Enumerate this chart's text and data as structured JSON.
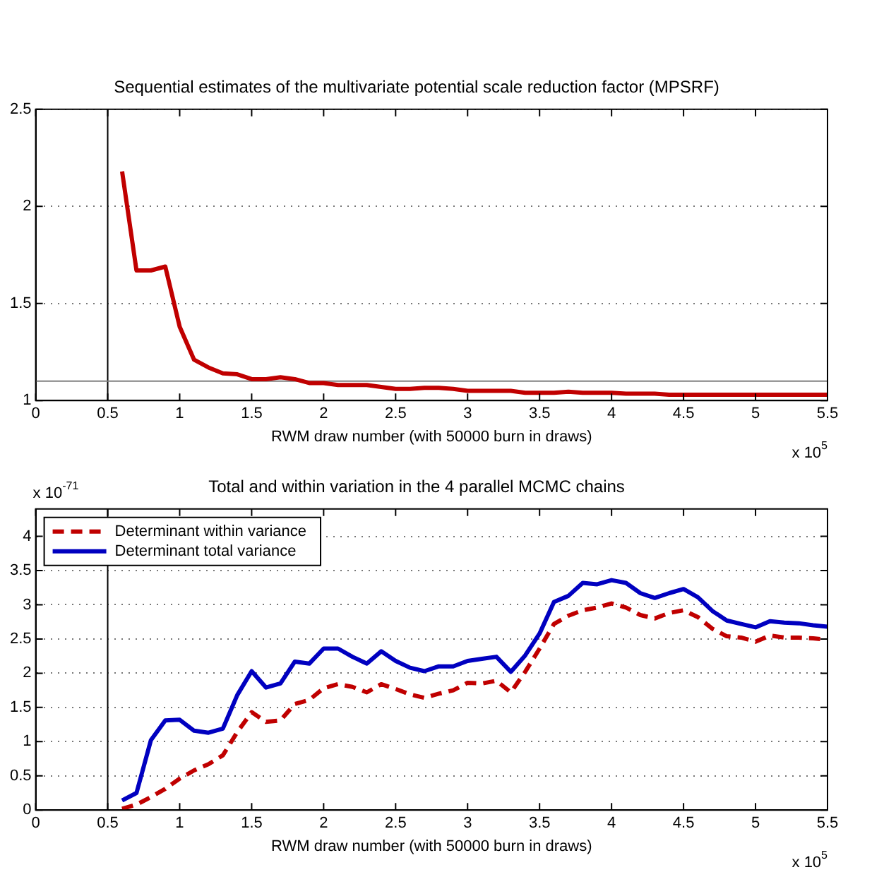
{
  "chart_data": [
    {
      "type": "line",
      "title": "Sequential estimates of the multivariate potential scale reduction factor (MPSRF)",
      "xlabel": "RWM draw number (with 50000 burn in draws)",
      "annotations": [
        "x 10$^{5}$"
      ],
      "x": [
        0.6,
        0.7,
        0.8,
        0.9,
        1.0,
        1.1,
        1.2,
        1.3,
        1.4,
        1.5,
        1.6,
        1.7,
        1.8,
        1.9,
        2.0,
        2.1,
        2.2,
        2.3,
        2.4,
        2.5,
        2.6,
        2.7,
        2.8,
        2.9,
        3.0,
        3.1,
        3.2,
        3.3,
        3.4,
        3.5,
        3.6,
        3.7,
        3.8,
        3.9,
        4.0,
        4.1,
        4.2,
        4.3,
        4.4,
        4.5,
        4.6,
        4.7,
        4.8,
        4.9,
        5.0,
        5.1,
        5.2,
        5.3,
        5.4,
        5.5
      ],
      "series": [
        {
          "color": "#c00000",
          "values": [
            2.18,
            1.67,
            1.67,
            1.69,
            1.38,
            1.21,
            1.17,
            1.14,
            1.135,
            1.11,
            1.11,
            1.12,
            1.11,
            1.09,
            1.09,
            1.08,
            1.08,
            1.08,
            1.07,
            1.06,
            1.06,
            1.065,
            1.065,
            1.06,
            1.05,
            1.05,
            1.05,
            1.05,
            1.04,
            1.04,
            1.04,
            1.045,
            1.04,
            1.04,
            1.04,
            1.035,
            1.035,
            1.035,
            1.03,
            1.03,
            1.03,
            1.03,
            1.03,
            1.03,
            1.03,
            1.03,
            1.03,
            1.03,
            1.03,
            1.03
          ]
        }
      ],
      "xlim": [
        0,
        5.5
      ],
      "xticks": [
        0,
        0.5,
        1,
        1.5,
        2,
        2.5,
        3,
        3.5,
        4,
        4.5,
        5,
        5.5
      ],
      "ylim": [
        1,
        2.5
      ],
      "yticks": [
        1,
        1.5,
        2,
        2.5
      ],
      "ref_lines": [
        {
          "axis": "x",
          "value": 0.5,
          "color": "#000000"
        },
        {
          "axis": "y",
          "value": 1.1,
          "color": "#808080"
        }
      ],
      "grid": "y",
      "legend": false
    },
    {
      "type": "line",
      "title": "Total and within variation in the 4 parallel MCMC chains",
      "xlabel": "RWM draw number (with 50000 burn in draws)",
      "annotations": [
        "x 10$^{5}$",
        "x 10$^{-71}$"
      ],
      "x": [
        0.6,
        0.7,
        0.8,
        0.9,
        1.0,
        1.1,
        1.2,
        1.3,
        1.4,
        1.5,
        1.6,
        1.7,
        1.8,
        1.9,
        2.0,
        2.1,
        2.2,
        2.3,
        2.4,
        2.5,
        2.6,
        2.7,
        2.8,
        2.9,
        3.0,
        3.1,
        3.2,
        3.3,
        3.4,
        3.5,
        3.6,
        3.7,
        3.8,
        3.9,
        4.0,
        4.1,
        4.2,
        4.3,
        4.4,
        4.5,
        4.6,
        4.7,
        4.8,
        4.9,
        5.0,
        5.1,
        5.2,
        5.3,
        5.4,
        5.5
      ],
      "series": [
        {
          "name": "Determinant within variance",
          "color": "#c00000",
          "line_style": "dashed",
          "values": [
            0.02,
            0.08,
            0.19,
            0.31,
            0.46,
            0.58,
            0.67,
            0.8,
            1.14,
            1.43,
            1.29,
            1.31,
            1.55,
            1.61,
            1.78,
            1.84,
            1.8,
            1.72,
            1.84,
            1.77,
            1.69,
            1.64,
            1.7,
            1.75,
            1.86,
            1.85,
            1.89,
            1.72,
            2.02,
            2.36,
            2.72,
            2.84,
            2.92,
            2.96,
            3.02,
            2.96,
            2.85,
            2.8,
            2.88,
            2.92,
            2.82,
            2.65,
            2.54,
            2.52,
            2.46,
            2.55,
            2.52,
            2.52,
            2.51,
            2.49
          ]
        },
        {
          "name": "Determinant total variance",
          "color": "#0000c0",
          "line_style": "solid",
          "values": [
            0.14,
            0.25,
            1.02,
            1.31,
            1.32,
            1.16,
            1.13,
            1.19,
            1.68,
            2.03,
            1.79,
            1.85,
            2.17,
            2.14,
            2.36,
            2.36,
            2.24,
            2.14,
            2.32,
            2.18,
            2.08,
            2.03,
            2.1,
            2.1,
            2.18,
            2.21,
            2.24,
            2.02,
            2.26,
            2.58,
            3.04,
            3.13,
            3.32,
            3.3,
            3.36,
            3.32,
            3.17,
            3.1,
            3.17,
            3.23,
            3.11,
            2.91,
            2.77,
            2.72,
            2.67,
            2.76,
            2.74,
            2.73,
            2.7,
            2.68
          ]
        }
      ],
      "xlim": [
        0,
        5.5
      ],
      "xticks": [
        0,
        0.5,
        1,
        1.5,
        2,
        2.5,
        3,
        3.5,
        4,
        4.5,
        5,
        5.5
      ],
      "ylim": [
        0,
        4.4
      ],
      "yticks": [
        0,
        0.5,
        1,
        1.5,
        2,
        2.5,
        3,
        3.5,
        4
      ],
      "ref_lines": [
        {
          "axis": "x",
          "value": 0.5,
          "color": "#000000"
        }
      ],
      "grid": "y",
      "legend": "top left"
    }
  ]
}
